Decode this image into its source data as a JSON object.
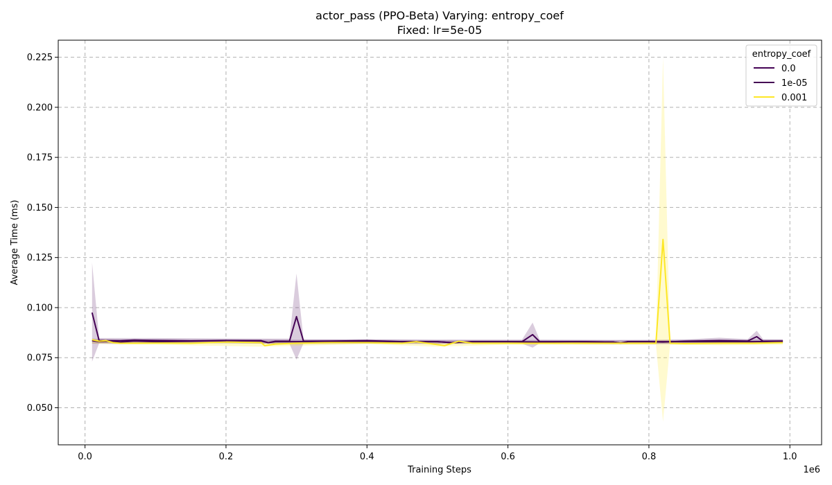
{
  "chart_data": {
    "type": "line",
    "title": "actor_pass (PPO-Beta) Varying: entropy_coef",
    "subtitle": "Fixed: lr=5e-05",
    "xlabel": "Training Steps",
    "ylabel": "Average Time (ms)",
    "x_offset_text": "1e6",
    "xlim": [
      -0.038,
      1.045
    ],
    "ylim": [
      0.0315,
      0.2335
    ],
    "x_ticks": [
      0.0,
      0.2,
      0.4,
      0.6,
      0.8,
      1.0
    ],
    "x_tick_labels": [
      "0.0",
      "0.2",
      "0.4",
      "0.6",
      "0.8",
      "1.0"
    ],
    "y_ticks": [
      0.05,
      0.075,
      0.1,
      0.125,
      0.15,
      0.175,
      0.2,
      0.225
    ],
    "y_tick_labels": [
      "0.050",
      "0.075",
      "0.100",
      "0.125",
      "0.150",
      "0.175",
      "0.200",
      "0.225"
    ],
    "grid": true,
    "legend": {
      "title": "entropy_coef",
      "placement": "top-right"
    },
    "series": [
      {
        "name": "0.0",
        "color": "#440154",
        "points": [
          [
            0.01,
            0.0835
          ],
          [
            0.02,
            0.083
          ],
          [
            0.03,
            0.0832
          ],
          [
            0.05,
            0.0828
          ],
          [
            0.07,
            0.0833
          ],
          [
            0.1,
            0.083
          ],
          [
            0.15,
            0.0832
          ],
          [
            0.2,
            0.0835
          ],
          [
            0.25,
            0.0833
          ],
          [
            0.26,
            0.0825
          ],
          [
            0.27,
            0.083
          ],
          [
            0.3,
            0.083
          ],
          [
            0.35,
            0.0832
          ],
          [
            0.4,
            0.0832
          ],
          [
            0.45,
            0.083
          ],
          [
            0.5,
            0.083
          ],
          [
            0.52,
            0.0825
          ],
          [
            0.55,
            0.083
          ],
          [
            0.6,
            0.083
          ],
          [
            0.65,
            0.0828
          ],
          [
            0.7,
            0.083
          ],
          [
            0.75,
            0.0828
          ],
          [
            0.76,
            0.0823
          ],
          [
            0.77,
            0.083
          ],
          [
            0.82,
            0.083
          ],
          [
            0.85,
            0.083
          ],
          [
            0.9,
            0.083
          ],
          [
            0.95,
            0.083
          ],
          [
            0.99,
            0.0832
          ]
        ],
        "band": [
          [
            0.01,
            0.0845,
            0.082
          ],
          [
            0.05,
            0.084,
            0.0818
          ],
          [
            0.1,
            0.0842,
            0.082
          ],
          [
            0.2,
            0.0843,
            0.0822
          ],
          [
            0.3,
            0.084,
            0.0818
          ],
          [
            0.4,
            0.084,
            0.082
          ],
          [
            0.5,
            0.0838,
            0.0818
          ],
          [
            0.6,
            0.0838,
            0.082
          ],
          [
            0.7,
            0.0838,
            0.0818
          ],
          [
            0.8,
            0.0838,
            0.0818
          ],
          [
            0.9,
            0.0842,
            0.0818
          ],
          [
            0.99,
            0.084,
            0.0822
          ]
        ]
      },
      {
        "name": "1e-05",
        "color": "#440154",
        "points": [
          [
            0.01,
            0.0975
          ],
          [
            0.02,
            0.0835
          ],
          [
            0.03,
            0.0835
          ],
          [
            0.05,
            0.0835
          ],
          [
            0.07,
            0.0838
          ],
          [
            0.1,
            0.0836
          ],
          [
            0.15,
            0.0834
          ],
          [
            0.2,
            0.0835
          ],
          [
            0.25,
            0.0835
          ],
          [
            0.26,
            0.0825
          ],
          [
            0.27,
            0.0832
          ],
          [
            0.29,
            0.0832
          ],
          [
            0.3,
            0.0955
          ],
          [
            0.31,
            0.0832
          ],
          [
            0.35,
            0.0833
          ],
          [
            0.4,
            0.0835
          ],
          [
            0.45,
            0.083
          ],
          [
            0.5,
            0.083
          ],
          [
            0.52,
            0.0825
          ],
          [
            0.55,
            0.083
          ],
          [
            0.6,
            0.083
          ],
          [
            0.62,
            0.083
          ],
          [
            0.635,
            0.0865
          ],
          [
            0.645,
            0.083
          ],
          [
            0.7,
            0.083
          ],
          [
            0.75,
            0.0828
          ],
          [
            0.76,
            0.0822
          ],
          [
            0.77,
            0.083
          ],
          [
            0.8,
            0.083
          ],
          [
            0.82,
            0.0828
          ],
          [
            0.85,
            0.0832
          ],
          [
            0.9,
            0.0835
          ],
          [
            0.94,
            0.0833
          ],
          [
            0.953,
            0.0855
          ],
          [
            0.962,
            0.0832
          ],
          [
            0.99,
            0.0833
          ]
        ],
        "band": [
          [
            0.01,
            0.1225,
            0.073
          ],
          [
            0.02,
            0.0848,
            0.0822
          ],
          [
            0.1,
            0.0848,
            0.0822
          ],
          [
            0.2,
            0.0845,
            0.0822
          ],
          [
            0.25,
            0.0845,
            0.082
          ],
          [
            0.29,
            0.0845,
            0.082
          ],
          [
            0.3,
            0.117,
            0.074
          ],
          [
            0.31,
            0.0842,
            0.0822
          ],
          [
            0.4,
            0.0842,
            0.0822
          ],
          [
            0.5,
            0.084,
            0.082
          ],
          [
            0.62,
            0.084,
            0.082
          ],
          [
            0.635,
            0.0925,
            0.08
          ],
          [
            0.645,
            0.084,
            0.0822
          ],
          [
            0.75,
            0.0838,
            0.0818
          ],
          [
            0.85,
            0.084,
            0.082
          ],
          [
            0.9,
            0.085,
            0.0822
          ],
          [
            0.94,
            0.0842,
            0.0822
          ],
          [
            0.953,
            0.0885,
            0.0828
          ],
          [
            0.962,
            0.0842,
            0.0822
          ],
          [
            0.99,
            0.0842,
            0.0822
          ]
        ]
      },
      {
        "name": "0.001",
        "color": "#fde725",
        "points": [
          [
            0.01,
            0.084
          ],
          [
            0.02,
            0.0832
          ],
          [
            0.03,
            0.0835
          ],
          [
            0.04,
            0.0825
          ],
          [
            0.05,
            0.0822
          ],
          [
            0.07,
            0.0822
          ],
          [
            0.1,
            0.0823
          ],
          [
            0.15,
            0.0822
          ],
          [
            0.2,
            0.0828
          ],
          [
            0.25,
            0.0825
          ],
          [
            0.255,
            0.081
          ],
          [
            0.27,
            0.0818
          ],
          [
            0.3,
            0.0822
          ],
          [
            0.35,
            0.0825
          ],
          [
            0.4,
            0.0825
          ],
          [
            0.45,
            0.0822
          ],
          [
            0.47,
            0.083
          ],
          [
            0.49,
            0.082
          ],
          [
            0.51,
            0.081
          ],
          [
            0.53,
            0.0832
          ],
          [
            0.55,
            0.0822
          ],
          [
            0.6,
            0.0822
          ],
          [
            0.65,
            0.0822
          ],
          [
            0.7,
            0.0822
          ],
          [
            0.75,
            0.0822
          ],
          [
            0.81,
            0.0822
          ],
          [
            0.82,
            0.134
          ],
          [
            0.83,
            0.0822
          ],
          [
            0.85,
            0.082
          ],
          [
            0.9,
            0.0822
          ],
          [
            0.95,
            0.0822
          ],
          [
            0.99,
            0.0825
          ]
        ],
        "band": [
          [
            0.01,
            0.0842,
            0.082
          ],
          [
            0.1,
            0.083,
            0.0815
          ],
          [
            0.25,
            0.0832,
            0.0805
          ],
          [
            0.4,
            0.083,
            0.0818
          ],
          [
            0.5,
            0.083,
            0.0805
          ],
          [
            0.6,
            0.083,
            0.0815
          ],
          [
            0.75,
            0.083,
            0.0815
          ],
          [
            0.81,
            0.083,
            0.0815
          ],
          [
            0.82,
            0.225,
            0.043
          ],
          [
            0.83,
            0.083,
            0.0815
          ],
          [
            0.9,
            0.0832,
            0.0812
          ],
          [
            0.99,
            0.0835,
            0.0815
          ]
        ]
      }
    ]
  }
}
